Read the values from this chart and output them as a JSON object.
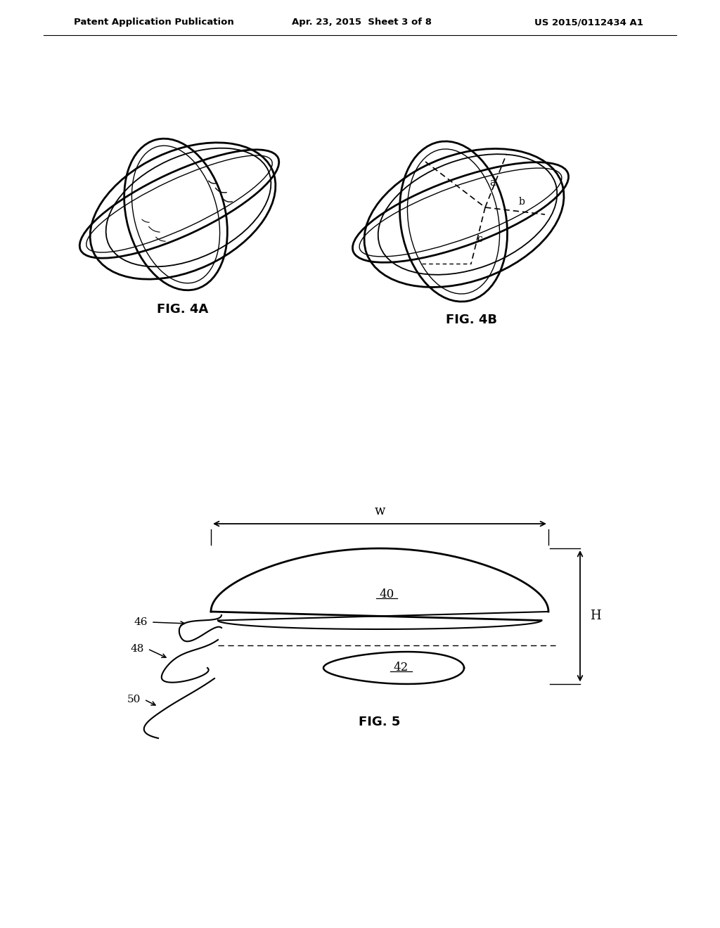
{
  "header_left": "Patent Application Publication",
  "header_mid": "Apr. 23, 2015  Sheet 3 of 8",
  "header_right": "US 2015/0112434 A1",
  "fig4a_label": "FIG. 4A",
  "fig4b_label": "FIG. 4B",
  "fig5_label": "FIG. 5",
  "label_40": "40",
  "label_42": "42",
  "label_46": "46",
  "label_48": "48",
  "label_50": "50",
  "label_w": "w",
  "label_H": "H",
  "label_a": "a",
  "label_b": "b",
  "label_c": "c",
  "bg_color": "#ffffff",
  "line_color": "#000000"
}
